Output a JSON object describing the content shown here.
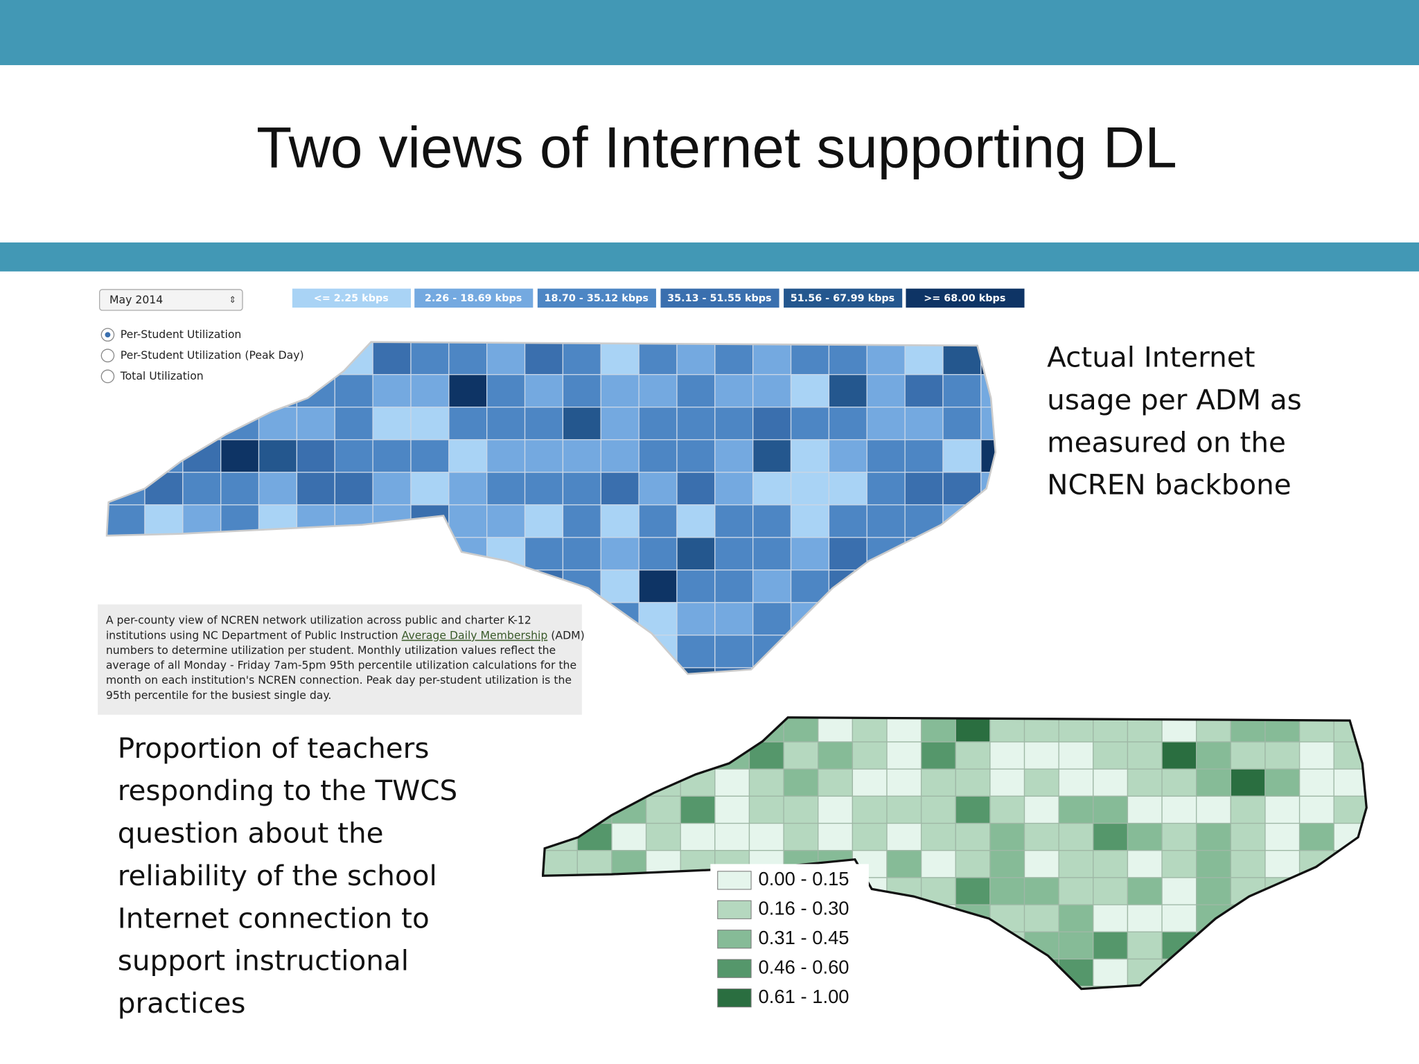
{
  "title": "Two views of Internet supporting DL",
  "top_map": {
    "month_select": "May 2014",
    "legend": [
      "<= 2.25 kbps",
      "2.26 - 18.69 kbps",
      "18.70 - 35.12 kbps",
      "35.13 - 51.55 kbps",
      "51.56 - 67.99 kbps",
      ">= 68.00 kbps"
    ],
    "options": [
      "Per-Student Utilization",
      "Per-Student Utilization (Peak Day)",
      "Total Utilization"
    ],
    "description": [
      "A per-county view of NCREN network utilization across public and charter K-12",
      [
        "institutions using NC Department of Public Instruction ",
        "Average Daily Membership",
        " (ADM)"
      ],
      "numbers to determine utilization per student. Monthly utilization values reflect the",
      "average of all Monday - Friday 7am-5pm 95th percentile utilization calculations for the",
      "month on each institution's NCREN connection. Peak day per-student utilization is the",
      "95th percentile for the busiest single day."
    ]
  },
  "top_caption": [
    "Actual Internet",
    "usage per ADM as",
    "measured on the",
    "NCREN backbone"
  ],
  "bottom_caption": [
    "Proportion of teachers",
    "responding to the TWCS",
    "question about the",
    "reliability of the school",
    "Internet connection to",
    "support instructional",
    "practices"
  ],
  "bottom_map": {
    "legend": [
      "0.00 - 0.15",
      "0.16 - 0.30",
      "0.31 - 0.45",
      "0.46 - 0.60",
      "0.61 - 1.00"
    ]
  }
}
